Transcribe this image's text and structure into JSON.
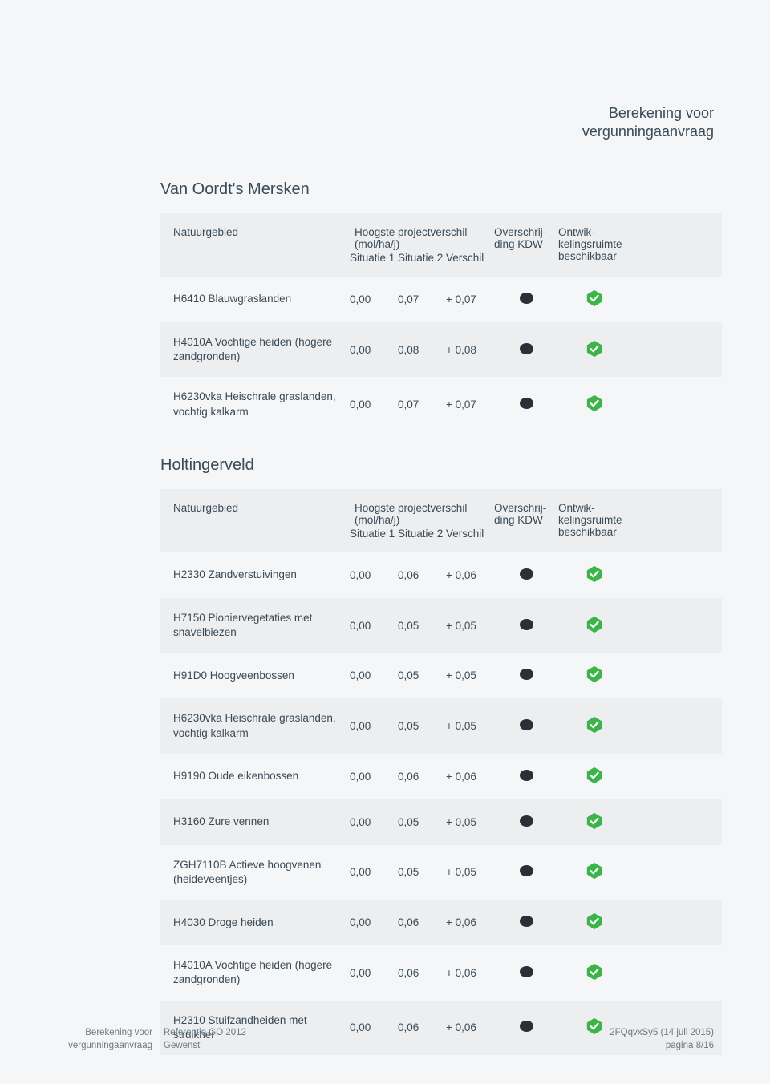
{
  "header": {
    "line1": "Berekening voor",
    "line2": "vergunningaanvraag"
  },
  "columns": {
    "natuurgebied": "Natuurgebied",
    "projectverschil_top": "Hoogste projectverschil (mol/ha/j)",
    "situatie1": "Situatie 1",
    "situatie2": "Situatie 2",
    "verschil": "Verschil",
    "overschrijding": "Overschrij- ding KDW",
    "ontwikkelingsruimte": "Ontwik- kelingsruimte beschikbaar"
  },
  "sections": [
    {
      "title": "Van Oordt's Mersken",
      "rows": [
        {
          "name": "H6410 Blauwgraslanden",
          "s1": "0,00",
          "s2": "0,07",
          "v": "+ 0,07"
        },
        {
          "name": "H4010A Vochtige heiden (hogere zandgronden)",
          "s1": "0,00",
          "s2": "0,08",
          "v": "+ 0,08"
        },
        {
          "name": "H6230vka Heischrale graslanden, vochtig kalkarm",
          "s1": "0,00",
          "s2": "0,07",
          "v": "+ 0,07"
        }
      ]
    },
    {
      "title": "Holtingerveld",
      "rows": [
        {
          "name": "H2330 Zandverstuivingen",
          "s1": "0,00",
          "s2": "0,06",
          "v": "+ 0,06"
        },
        {
          "name": "H7150 Pioniervegetaties met snavelbiezen",
          "s1": "0,00",
          "s2": "0,05",
          "v": "+ 0,05"
        },
        {
          "name": "H91D0 Hoogveenbossen",
          "s1": "0,00",
          "s2": "0,05",
          "v": "+ 0,05"
        },
        {
          "name": "H6230vka Heischrale graslanden, vochtig kalkarm",
          "s1": "0,00",
          "s2": "0,05",
          "v": "+ 0,05"
        },
        {
          "name": "H9190 Oude eikenbossen",
          "s1": "0,00",
          "s2": "0,06",
          "v": "+ 0,06"
        },
        {
          "name": "H3160 Zure vennen",
          "s1": "0,00",
          "s2": "0,05",
          "v": "+ 0,05"
        },
        {
          "name": "ZGH7110B Actieve hoogvenen (heideveentjes)",
          "s1": "0,00",
          "s2": "0,05",
          "v": "+ 0,05"
        },
        {
          "name": "H4030 Droge heiden",
          "s1": "0,00",
          "s2": "0,06",
          "v": "+ 0,06"
        },
        {
          "name": "H4010A Vochtige heiden (hogere zandgronden)",
          "s1": "0,00",
          "s2": "0,06",
          "v": "+ 0,06"
        },
        {
          "name": "H2310 Stuifzandheiden met struikhei",
          "s1": "0,00",
          "s2": "0,06",
          "v": "+ 0,06"
        }
      ]
    }
  ],
  "footer": {
    "left1": "Berekening voor",
    "left2": "vergunningaanvraag",
    "mid1": "Referentie GO 2012",
    "mid2": "Gewenst",
    "right1": "2FQqvxSy5 (14 juli 2015)",
    "right2": "pagina 8/16"
  },
  "styling": {
    "check_fill": "#3bb54a",
    "check_stroke": "#ffffff",
    "dot_color": "#2a3038",
    "alt_row_bg": "#eceef0",
    "page_bg": "#f5f6f7",
    "title_color": "#3a4a56",
    "header_fontsize": 18,
    "section_title_fontsize": 20,
    "body_fontsize": 13.5,
    "small_fontsize": 11.5
  }
}
